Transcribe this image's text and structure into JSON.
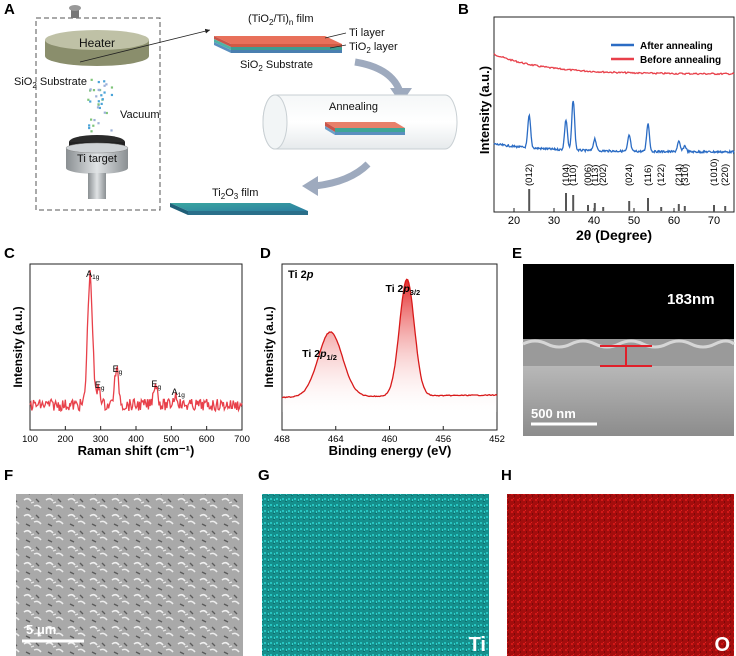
{
  "figure": {
    "panels": {
      "A": {
        "letter": "A",
        "heater": "Heater",
        "substrate": "SiO",
        "substrate_sub": "2",
        "substrate_tail": " Substrate",
        "vacuum": "Vacuum",
        "target": "Ti target",
        "film_title_pre": "(TiO",
        "film_title_sub1": "2",
        "film_title_mid": "/Ti)",
        "film_title_sub2": "n",
        "film_title_post": " film",
        "ti_layer": "Ti layer",
        "tio2_pre": "TiO",
        "tio2_sub": "2",
        "tio2_post": " layer",
        "sio2_pre": "SiO",
        "sio2_sub": "2",
        "sio2_post": " Substrate",
        "annealing": "Annealing",
        "ti2o3_pre": "Ti",
        "ti2o3_sub1": "2",
        "ti2o3_mid": "O",
        "ti2o3_sub2": "3",
        "ti2o3_post": " film"
      },
      "B": {
        "letter": "B"
      },
      "C": {
        "letter": "C"
      },
      "D": {
        "letter": "D"
      },
      "E": {
        "letter": "E",
        "thickness": "183nm",
        "scalebar": "500 nm"
      },
      "F": {
        "letter": "F",
        "scalebar": "5 μm"
      },
      "G": {
        "letter": "G",
        "element": "Ti",
        "color": "#1aa9a6"
      },
      "H": {
        "letter": "H",
        "element": "O",
        "color": "#c01010"
      }
    }
  },
  "chart_data": [
    {
      "id": "B",
      "type": "line",
      "xlabel": "2θ (Degree)",
      "ylabel": "Intensity (a.u.)",
      "xlim": [
        15,
        75
      ],
      "xticks": [
        20,
        30,
        40,
        50,
        60,
        70
      ],
      "legend": [
        "After annealing",
        "Before annealing"
      ],
      "colors": [
        "#2b6cc4",
        "#e8404a"
      ],
      "reference_peaks": [
        {
          "x": 23.8,
          "label": "(012)"
        },
        {
          "x": 33.0,
          "label": "(104)"
        },
        {
          "x": 34.8,
          "label": "(110)"
        },
        {
          "x": 38.5,
          "label": "(006)"
        },
        {
          "x": 40.2,
          "label": "(113)"
        },
        {
          "x": 42.3,
          "label": "(202)"
        },
        {
          "x": 48.8,
          "label": "(024)"
        },
        {
          "x": 53.5,
          "label": "(116)"
        },
        {
          "x": 56.8,
          "label": "(122)"
        },
        {
          "x": 61.2,
          "label": "(214)"
        },
        {
          "x": 62.7,
          "label": "(310)"
        },
        {
          "x": 70.0,
          "label": "(1010)"
        },
        {
          "x": 72.8,
          "label": "(220)"
        }
      ]
    },
    {
      "id": "C",
      "type": "line",
      "xlabel": "Raman shift (cm⁻¹)",
      "ylabel": "Intensity (a.u.)",
      "xlim": [
        100,
        700
      ],
      "xticks": [
        100,
        200,
        300,
        400,
        500,
        600,
        700
      ],
      "color": "#e8404a",
      "peaks": [
        {
          "x": 270,
          "base": "A",
          "sub": "1g"
        },
        {
          "x": 295,
          "base": "E",
          "sub": "g"
        },
        {
          "x": 345,
          "base": "E",
          "sub": "g"
        },
        {
          "x": 455,
          "base": "E",
          "sub": "g"
        },
        {
          "x": 512,
          "base": "A",
          "sub": "1g"
        }
      ]
    },
    {
      "id": "D",
      "type": "line",
      "title_pre": "Ti 2",
      "title_italic": "p",
      "xlabel": "Binding energy (eV)",
      "ylabel": "Intensity (a.u.)",
      "xlim": [
        468,
        452
      ],
      "xticks": [
        468,
        464,
        460,
        456,
        452
      ],
      "color": "#d81a1a",
      "peaks": [
        {
          "x": 464.4,
          "pre": "Ti 2",
          "italic": "p",
          "sub": "1/2"
        },
        {
          "x": 458.7,
          "pre": "Ti 2",
          "italic": "p",
          "sub": "3/2"
        }
      ]
    }
  ]
}
